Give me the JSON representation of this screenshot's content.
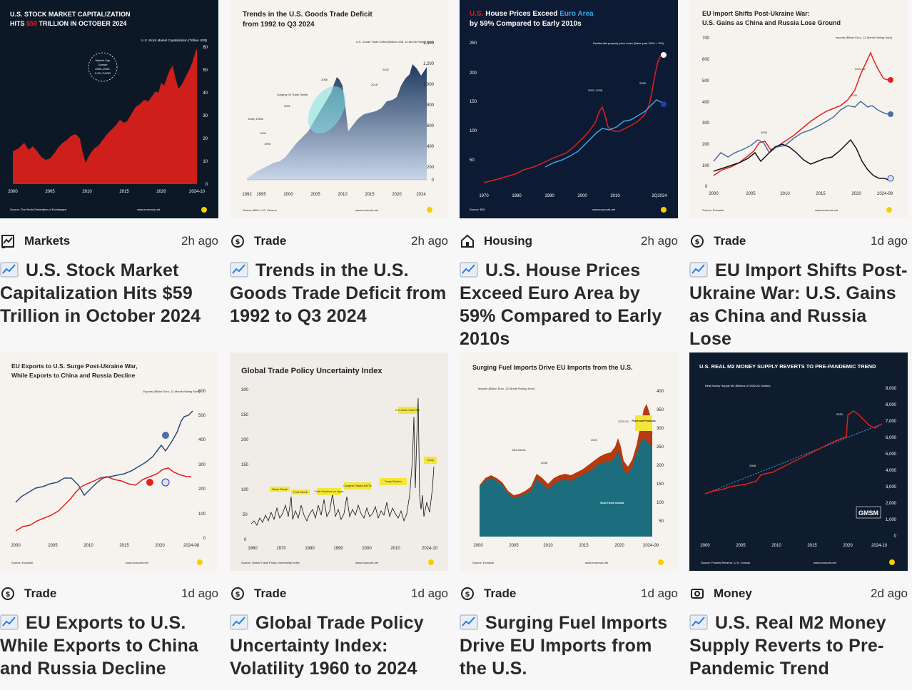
{
  "cards": [
    {
      "category": "Markets",
      "icon": "chart-line-icon",
      "time": "2h ago",
      "title": "U.S. Stock Market Capitalization Hits $59 Trillion in October 2024",
      "thumb": {
        "heading_1": "U.S. STOCK MARKET CAPITALIZATION",
        "heading_2a": "HITS ",
        "heading_2b": "$59",
        "heading_2c": " TRILLION IN OCTOBER 2024",
        "axis_label": "U.S. Stock Market Capitalization (Trillion US$)",
        "badge": [
          "Market Cap",
          "Growth",
          "2000–2024:",
          "5.2% CAGR"
        ],
        "x_ticks": [
          "2000",
          "2005",
          "2010",
          "2015",
          "2020",
          "2024-10"
        ],
        "y_ticks": [
          "60",
          "50",
          "40",
          "30",
          "20",
          "10",
          "0"
        ],
        "source": "Source: The World Federation of Exchanges",
        "brand": "www.econovis.net"
      }
    },
    {
      "category": "Trade",
      "icon": "trade-icon",
      "time": "2h ago",
      "title": "Trends in the U.S. Goods Trade Deficit from 1992 to Q3 2024",
      "thumb": {
        "heading_1": "Trends in the U.S. Goods Trade Deficit",
        "heading_2": "from 1992 to Q3 2024",
        "axis_label": "U.S. Goods Trade Deficit (Billion US$, 12-Month Rolling Sum)",
        "annotations": [
          "Early 1990s",
          "1994",
          "1995",
          "2001",
          "Surging Oil Trade Deficit",
          "2008",
          "2018",
          "2022"
        ],
        "x_ticks": [
          "1992",
          "1995",
          "2000",
          "2005",
          "2010",
          "2015",
          "2020",
          "2024"
        ],
        "y_ticks": [
          "1,400",
          "1,200",
          "1,000",
          "800",
          "600",
          "400",
          "200",
          "0"
        ],
        "source": "Source: BEA, U.S. Census",
        "brand": "www.econovis.net"
      }
    },
    {
      "category": "Housing",
      "icon": "house-icon",
      "time": "2h ago",
      "title": "U.S. House Prices Exceed Euro Area by 59% Compared to Early 2010s",
      "thumb": {
        "heading_1a": "U.S.",
        "heading_1b": " House Prices Exceed ",
        "heading_1c": "Euro Area",
        "heading_2": "by 59% Compared to Early 2010s",
        "axis_label": "Residential property price index (Base year 2010 = 100)",
        "annotations": [
          "2007–2008",
          "2020"
        ],
        "x_ticks": [
          "1970",
          "1980",
          "1990",
          "2000",
          "2010",
          "2Q2024"
        ],
        "y_ticks": [
          "250",
          "200",
          "150",
          "100",
          "50"
        ],
        "source": "Source: BIS",
        "brand": "www.econovis.net"
      }
    },
    {
      "category": "Trade",
      "icon": "trade-icon",
      "time": "1d ago",
      "title": "EU Import Shifts Post-Ukraine War: U.S. Gains as China and Russia Lose",
      "thumb": {
        "heading_1": "EU Import Shifts Post-Ukraine War:",
        "heading_2": "U.S. Gains as China and Russia Lose Ground",
        "axis_label": "Imports (Billion Euro, 12-Month Rolling Sum)",
        "annotations": [
          "2008",
          "2020",
          "2022-02"
        ],
        "x_ticks": [
          "2000",
          "2005",
          "2010",
          "2015",
          "2020",
          "2024-09"
        ],
        "y_ticks": [
          "700",
          "600",
          "500",
          "400",
          "300",
          "200",
          "100",
          "0"
        ],
        "source": "Source: Eurostat",
        "brand": "www.econovis.net"
      }
    },
    {
      "category": "Trade",
      "icon": "trade-icon",
      "time": "1d ago",
      "title": "EU Exports to U.S. While Exports to China and Russia Decline",
      "thumb": {
        "heading_1": "EU Exports to U.S. Surge Post-Ukraine War,",
        "heading_2": "While Exports to China and Russia Decline",
        "axis_label": "Exports (Billion Euro, 12-Month Rolling Sum)",
        "x_ticks": [
          "2000",
          "2005",
          "2010",
          "2015",
          "2020",
          "2024-08"
        ],
        "y_ticks": [
          "600",
          "500",
          "400",
          "300",
          "200",
          "100",
          "0"
        ],
        "source": "Source: Eurostat",
        "brand": "www.econovis.net"
      }
    },
    {
      "category": "Trade",
      "icon": "trade-icon",
      "time": "1d ago",
      "title": "Global Trade Policy Uncertainty Index: Volatility 1960 to 2024",
      "thumb": {
        "heading_1": "Global Trade Policy Uncertainty Index",
        "labels": [
          "Nixon Shock",
          "Ford Shock",
          "Trade Sanctions on Japan",
          "Congress Passes NAFTA",
          "Trump Election",
          "U.S.-China Trade War",
          "Trump"
        ],
        "x_ticks": [
          "1960",
          "1970",
          "1980",
          "1990",
          "2000",
          "2010",
          "2024-10"
        ],
        "y_ticks": [
          "300",
          "250",
          "200",
          "150",
          "100",
          "50",
          "0"
        ],
        "source": "Source: Global Trade Policy Uncertainty Index",
        "brand": "www.econovis.net"
      }
    },
    {
      "category": "Trade",
      "icon": "trade-icon",
      "time": "1d ago",
      "title": "Surging Fuel Imports Drive EU Imports from the U.S.",
      "thumb": {
        "heading_1": "Surging Fuel Imports Drive EU Imports from the U.S.",
        "axis_label": "Imports (Billion Euro, 12-Month Rolling Sum)",
        "labels": [
          "Fuels and Products",
          "Non-Fuels Goods"
        ],
        "annotations": [
          "Mid-2000s",
          "2008",
          "2020",
          "2022-02"
        ],
        "x_ticks": [
          "2000",
          "2005",
          "2010",
          "2015",
          "2020",
          "2024-09"
        ],
        "y_ticks": [
          "400",
          "350",
          "300",
          "250",
          "200",
          "150",
          "100",
          "50"
        ],
        "source": "Source: Eurostat",
        "brand": "www.econovis.net"
      }
    },
    {
      "category": "Money",
      "icon": "money-icon",
      "time": "2d ago",
      "title": "U.S. Real M2 Money Supply Reverts to Pre-Pandemic Trend",
      "thumb": {
        "heading_1": "U.S. REAL M2 MONEY SUPPLY REVERTS TO PRE-PANDEMIC TREND",
        "axis_label": "Real Money Supply M2 (Billions of 1982-84 Dollars)",
        "annotations": [
          "2008",
          "2020"
        ],
        "logo": "GMSM",
        "x_ticks": [
          "2000",
          "2005",
          "2010",
          "2015",
          "2020",
          "2024-10"
        ],
        "y_ticks": [
          "9,000",
          "8,000",
          "7,000",
          "6,000",
          "5,000",
          "4,000",
          "3,000",
          "2,000",
          "1,000",
          "0"
        ],
        "source": "Source: Federal Reserve, U.S. Census",
        "brand": "www.econovis.net"
      }
    }
  ],
  "colors": {
    "stock_bg": "#0c1826",
    "stock_red": "#e3201b",
    "trade_blue": "#4a6fa5",
    "house_bg": "#0d1a33",
    "house_red": "#e0201e",
    "house_blue": "#3da7e6",
    "m2_bg": "#0f1c2e",
    "m2_red": "#e3201b",
    "fuel_teal": "#1c6e7e",
    "fuel_orange": "#b53a10",
    "gtpu_yellow": "#f3e63a"
  }
}
